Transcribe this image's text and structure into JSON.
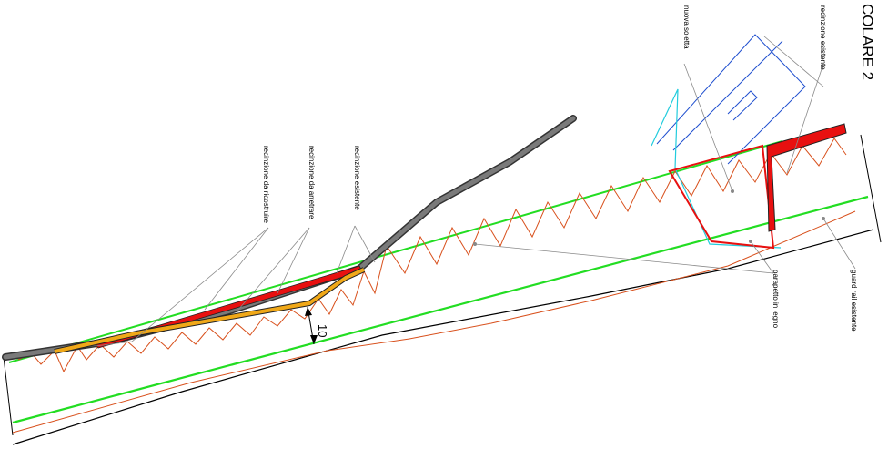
{
  "title": "COLARE 2",
  "labels": {
    "recinzione_ricostruire": "recinzione da ricostruire",
    "recinzione_arretrare": "recinzione da arretrare",
    "recinzione_esistente_left": "recinzione esistente",
    "nuova_soletta": "nuova soletta",
    "recinzione_esistente_right": "recinzione esistente",
    "parapetto_legno": "parapetto in legno",
    "guard_rail_esistente": "guard rail esistente"
  },
  "dimension": "10",
  "colors": {
    "green": "#22dd22",
    "orange_line": "#d8501c",
    "red": "#e81010",
    "gold": "#f0a818",
    "grey": "#6e6e6e",
    "blue": "#1f4fcf",
    "cyan": "#22ccdd",
    "leader": "#8a8a8a"
  }
}
